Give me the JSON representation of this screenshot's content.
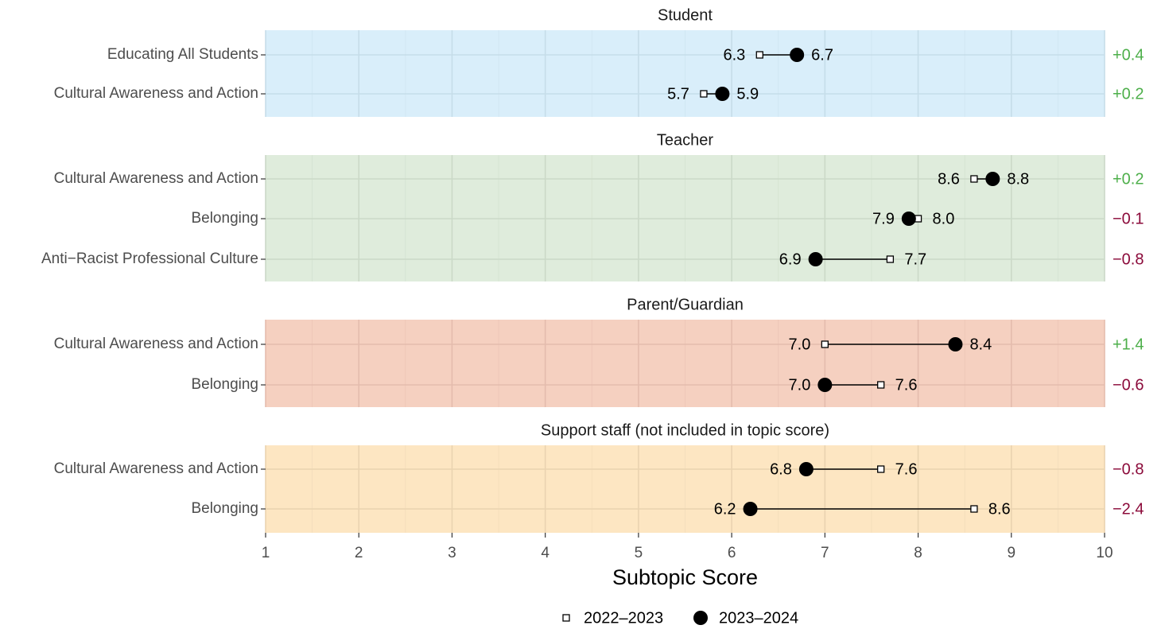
{
  "chart_data": {
    "type": "dumbbell",
    "xlabel": "Subtopic Score",
    "xlim": [
      1,
      10
    ],
    "xticks": [
      1,
      2,
      3,
      4,
      5,
      6,
      7,
      8,
      9,
      10
    ],
    "grid": true,
    "legend": {
      "placement": "bottom",
      "entries": [
        {
          "name": "2022–2023",
          "marker": "open-square"
        },
        {
          "name": "2023–2024",
          "marker": "filled-circle"
        }
      ]
    },
    "colors": {
      "positive_diff": "#4daf4a",
      "negative_diff": "#8b0a3a",
      "panel_student": "#d9eefa",
      "panel_teacher": "#dfecdc",
      "panel_parent": "#f5d0c0",
      "panel_support": "#fde6c2"
    },
    "facets": [
      {
        "title": "Student",
        "panel": "student",
        "rows": [
          {
            "label": "Educating All Students",
            "y2022_23": 6.3,
            "y2023_24": 6.7,
            "value_label_2022_23": "6.3",
            "value_label_2023_24": "6.7",
            "diff": "+0.4",
            "sign": "pos"
          },
          {
            "label": "Cultural Awareness and Action",
            "y2022_23": 5.7,
            "y2023_24": 5.9,
            "value_label_2022_23": "5.7",
            "value_label_2023_24": "5.9",
            "diff": "+0.2",
            "sign": "pos"
          }
        ]
      },
      {
        "title": "Teacher",
        "panel": "teacher",
        "rows": [
          {
            "label": "Cultural Awareness and Action",
            "y2022_23": 8.6,
            "y2023_24": 8.8,
            "value_label_2022_23": "8.6",
            "value_label_2023_24": "8.8",
            "diff": "+0.2",
            "sign": "pos"
          },
          {
            "label": "Belonging",
            "y2022_23": 8.0,
            "y2023_24": 7.9,
            "value_label_2022_23": "8.0",
            "value_label_2023_24": "7.9",
            "diff": "−0.1",
            "sign": "neg"
          },
          {
            "label": "Anti−Racist Professional Culture",
            "y2022_23": 7.7,
            "y2023_24": 6.9,
            "value_label_2022_23": "7.7",
            "value_label_2023_24": "6.9",
            "diff": "−0.8",
            "sign": "neg"
          }
        ]
      },
      {
        "title": "Parent/Guardian",
        "panel": "parent",
        "rows": [
          {
            "label": "Cultural Awareness and Action",
            "y2022_23": 7.0,
            "y2023_24": 8.4,
            "value_label_2022_23": "7.0",
            "value_label_2023_24": "8.4",
            "diff": "+1.4",
            "sign": "pos"
          },
          {
            "label": "Belonging",
            "y2022_23": 7.6,
            "y2023_24": 7.0,
            "value_label_2022_23": "7.6",
            "value_label_2023_24": "7.0",
            "diff": "−0.6",
            "sign": "neg"
          }
        ]
      },
      {
        "title": "Support staff (not included in topic score)",
        "panel": "support",
        "rows": [
          {
            "label": "Cultural Awareness and Action",
            "y2022_23": 7.6,
            "y2023_24": 6.8,
            "value_label_2022_23": "7.6",
            "value_label_2023_24": "6.8",
            "diff": "−0.8",
            "sign": "neg"
          },
          {
            "label": "Belonging",
            "y2022_23": 8.6,
            "y2023_24": 6.2,
            "value_label_2022_23": "8.6",
            "value_label_2023_24": "6.2",
            "diff": "−2.4",
            "sign": "neg"
          }
        ]
      }
    ]
  }
}
